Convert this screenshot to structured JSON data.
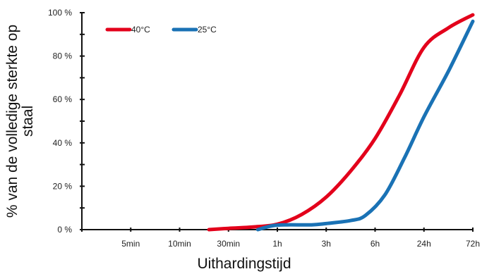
{
  "chart_data": {
    "type": "line",
    "title": "",
    "xlabel": "Uithardingstijd",
    "ylabel_lines": [
      "% van de volledige sterkte op",
      "staal"
    ],
    "x_categories": [
      "",
      "5min",
      "10min",
      "30min",
      "1h",
      "3h",
      "6h",
      "24h",
      "72h"
    ],
    "ylim": [
      0,
      100
    ],
    "y_ticks": [
      {
        "value": 0,
        "label": "0 %"
      },
      {
        "value": 20,
        "label": "20 %"
      },
      {
        "value": 40,
        "label": "40 %"
      },
      {
        "value": 60,
        "label": "60 %"
      },
      {
        "value": 80,
        "label": "80 %"
      },
      {
        "value": 100,
        "label": "100 %"
      }
    ],
    "grid": false,
    "legend_position": "top-left",
    "series": [
      {
        "name": "40°C",
        "color": "#e3001b",
        "points": [
          [
            2.6,
            0
          ],
          [
            3.0,
            0.6
          ],
          [
            3.5,
            1.2
          ],
          [
            4.0,
            2.5
          ],
          [
            4.5,
            7.0
          ],
          [
            5.0,
            15.0
          ],
          [
            5.5,
            27.0
          ],
          [
            6.0,
            42.0
          ],
          [
            6.5,
            62.0
          ],
          [
            7.0,
            84.0
          ],
          [
            7.5,
            93.0
          ],
          [
            8.0,
            99.0
          ]
        ]
      },
      {
        "name": "25°C",
        "color": "#1a72b5",
        "points": [
          [
            3.6,
            0
          ],
          [
            3.9,
            1.8
          ],
          [
            4.2,
            2.2
          ],
          [
            4.7,
            2.2
          ],
          [
            5.0,
            2.8
          ],
          [
            5.5,
            4.2
          ],
          [
            5.8,
            6.5
          ],
          [
            6.2,
            16.0
          ],
          [
            6.6,
            33.0
          ],
          [
            7.0,
            52.0
          ],
          [
            7.5,
            73.0
          ],
          [
            8.0,
            96.0
          ]
        ]
      }
    ]
  }
}
